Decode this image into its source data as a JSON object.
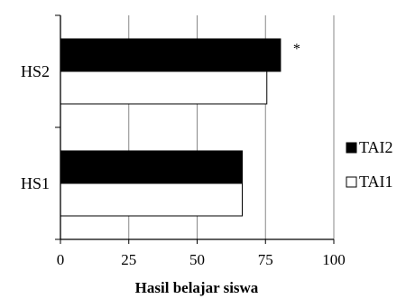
{
  "chart_data": {
    "type": "bar",
    "orientation": "horizontal",
    "categories": [
      "HS2",
      "HS1"
    ],
    "series": [
      {
        "name": "TAI2",
        "values": [
          80.5,
          66.5
        ],
        "color": "#000000"
      },
      {
        "name": "TAI1",
        "values": [
          75.5,
          66.5
        ],
        "color": "#ffffff"
      }
    ],
    "xlim": [
      0,
      100
    ],
    "xticks": [
      "0",
      "25",
      "50",
      "75",
      "100"
    ],
    "xlabel": "Hasil belajar siswa",
    "ylabel": "",
    "title": "",
    "grid": "vertical",
    "legend": "right",
    "annotations": [
      {
        "category": "HS2",
        "series": "TAI2",
        "text": "*"
      }
    ]
  }
}
